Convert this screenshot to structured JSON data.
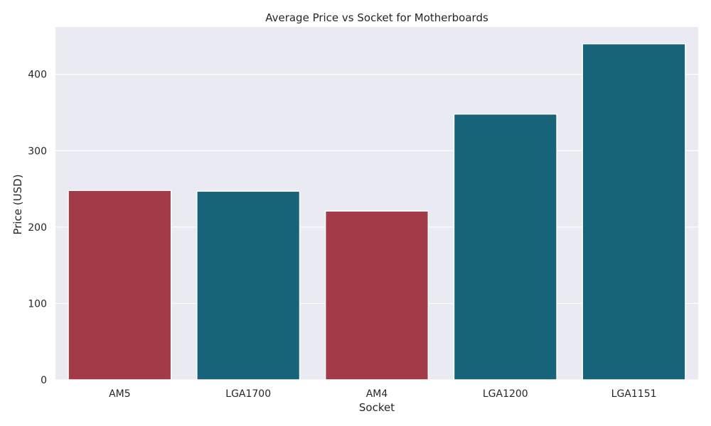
{
  "chart_data": {
    "type": "bar",
    "title": "Average Price vs Socket for Motherboards",
    "xlabel": "Socket",
    "ylabel": "Price (USD)",
    "categories": [
      "AM5",
      "LGA1700",
      "AM4",
      "LGA1200",
      "LGA1151"
    ],
    "values": [
      248,
      247,
      221,
      348,
      440
    ],
    "bar_colors": [
      "#a33a48",
      "#17647a",
      "#a33a48",
      "#17647a",
      "#17647a"
    ],
    "ylim": [
      0,
      462
    ],
    "yticks": [
      0,
      100,
      200,
      300,
      400
    ],
    "grid": true,
    "grid_axis": "y",
    "background": "#eaeaf2"
  }
}
